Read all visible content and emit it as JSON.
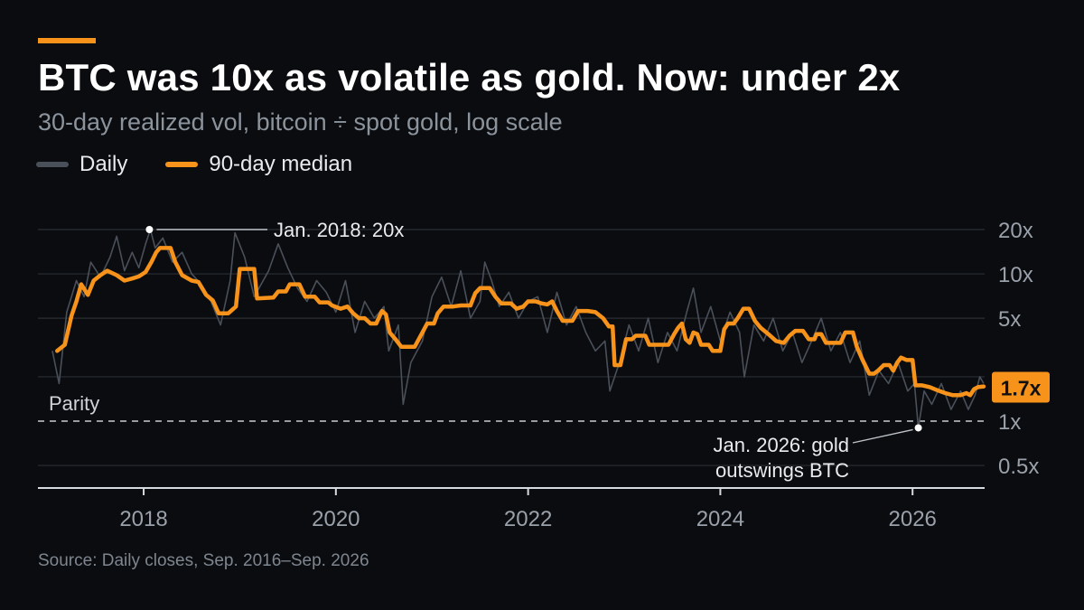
{
  "header": {
    "title": "BTC was 10x as volatile as gold. Now: under 2x",
    "subtitle": "30-day realized vol, bitcoin ÷ spot gold, log scale"
  },
  "legend": {
    "daily_label": "Daily",
    "median_label": "90-day median"
  },
  "footer": {
    "source": "Source: Daily closes, Sep. 2016–Sep. 2026"
  },
  "colors": {
    "background": "#0b0c0f",
    "accent": "#f7931a",
    "median_line": "#f7931a",
    "daily_line": "#4a505a",
    "grid": "#2a2e35",
    "axis_text": "#9aa1aa",
    "parity_line": "#c8ccd2"
  },
  "chart_data": {
    "type": "line",
    "title": "BTC was 10x as volatile as gold. Now: under 2x",
    "subtitle": "30-day realized vol, bitcoin ÷ spot gold, log scale",
    "xlabel": "",
    "ylabel": "",
    "x_range": [
      2016.9,
      2026.75
    ],
    "ylim": [
      0.4,
      22
    ],
    "y_scale": "log",
    "x_ticks": [
      2018,
      2020,
      2022,
      2024,
      2026
    ],
    "x_tick_labels": [
      "2018",
      "2020",
      "2022",
      "2024",
      "2026"
    ],
    "y_ticks": [
      0.5,
      1,
      2,
      5,
      10,
      20
    ],
    "y_tick_labels": [
      "0.5x",
      "1x",
      "",
      "5x",
      "10x",
      "20x"
    ],
    "grid": true,
    "reference_line": {
      "y": 1,
      "label": "Parity",
      "style": "dashed"
    },
    "series": [
      {
        "name": "Daily",
        "values": [
          [
            2017.05,
            3.0
          ],
          [
            2017.12,
            1.8
          ],
          [
            2017.2,
            5.5
          ],
          [
            2017.3,
            9.0
          ],
          [
            2017.38,
            7.0
          ],
          [
            2017.45,
            12.0
          ],
          [
            2017.55,
            9.5
          ],
          [
            2017.65,
            13.0
          ],
          [
            2017.72,
            18.0
          ],
          [
            2017.8,
            10.5
          ],
          [
            2017.88,
            14.0
          ],
          [
            2017.95,
            11.0
          ],
          [
            2018.02,
            16.0
          ],
          [
            2018.07,
            20.0
          ],
          [
            2018.12,
            15.0
          ],
          [
            2018.2,
            17.5
          ],
          [
            2018.3,
            12.0
          ],
          [
            2018.4,
            14.0
          ],
          [
            2018.5,
            10.0
          ],
          [
            2018.6,
            8.5
          ],
          [
            2018.7,
            6.5
          ],
          [
            2018.8,
            4.5
          ],
          [
            2018.9,
            9.0
          ],
          [
            2018.95,
            19.0
          ],
          [
            2019.05,
            13.0
          ],
          [
            2019.15,
            7.0
          ],
          [
            2019.3,
            10.5
          ],
          [
            2019.4,
            16.0
          ],
          [
            2019.5,
            11.0
          ],
          [
            2019.6,
            8.0
          ],
          [
            2019.7,
            6.5
          ],
          [
            2019.8,
            9.0
          ],
          [
            2019.9,
            7.5
          ],
          [
            2020.0,
            5.5
          ],
          [
            2020.1,
            9.0
          ],
          [
            2020.2,
            4.0
          ],
          [
            2020.3,
            6.5
          ],
          [
            2020.4,
            5.0
          ],
          [
            2020.5,
            6.0
          ],
          [
            2020.55,
            3.0
          ],
          [
            2020.65,
            4.5
          ],
          [
            2020.7,
            1.3
          ],
          [
            2020.78,
            2.5
          ],
          [
            2020.9,
            3.5
          ],
          [
            2021.0,
            7.0
          ],
          [
            2021.1,
            9.5
          ],
          [
            2021.2,
            6.0
          ],
          [
            2021.3,
            10.5
          ],
          [
            2021.4,
            5.0
          ],
          [
            2021.5,
            6.5
          ],
          [
            2021.55,
            12.0
          ],
          [
            2021.62,
            9.0
          ],
          [
            2021.7,
            6.0
          ],
          [
            2021.8,
            7.5
          ],
          [
            2021.9,
            5.0
          ],
          [
            2022.0,
            6.5
          ],
          [
            2022.1,
            7.0
          ],
          [
            2022.2,
            4.0
          ],
          [
            2022.3,
            7.5
          ],
          [
            2022.4,
            4.5
          ],
          [
            2022.5,
            6.0
          ],
          [
            2022.6,
            4.0
          ],
          [
            2022.7,
            3.0
          ],
          [
            2022.8,
            3.5
          ],
          [
            2022.85,
            1.6
          ],
          [
            2022.95,
            2.5
          ],
          [
            2023.05,
            4.5
          ],
          [
            2023.15,
            3.0
          ],
          [
            2023.25,
            5.0
          ],
          [
            2023.35,
            2.5
          ],
          [
            2023.45,
            4.0
          ],
          [
            2023.55,
            3.0
          ],
          [
            2023.65,
            5.5
          ],
          [
            2023.72,
            8.0
          ],
          [
            2023.8,
            4.0
          ],
          [
            2023.9,
            6.0
          ],
          [
            2024.0,
            3.5
          ],
          [
            2024.1,
            5.5
          ],
          [
            2024.2,
            4.0
          ],
          [
            2024.25,
            2.0
          ],
          [
            2024.35,
            4.5
          ],
          [
            2024.45,
            3.5
          ],
          [
            2024.55,
            5.0
          ],
          [
            2024.65,
            3.0
          ],
          [
            2024.75,
            4.0
          ],
          [
            2024.85,
            2.5
          ],
          [
            2024.95,
            3.5
          ],
          [
            2025.05,
            5.0
          ],
          [
            2025.15,
            3.0
          ],
          [
            2025.25,
            4.0
          ],
          [
            2025.35,
            2.5
          ],
          [
            2025.45,
            3.5
          ],
          [
            2025.55,
            1.5
          ],
          [
            2025.65,
            2.2
          ],
          [
            2025.75,
            1.8
          ],
          [
            2025.85,
            2.5
          ],
          [
            2025.95,
            1.6
          ],
          [
            2026.02,
            1.8
          ],
          [
            2026.06,
            0.9
          ],
          [
            2026.12,
            1.6
          ],
          [
            2026.2,
            1.3
          ],
          [
            2026.3,
            1.8
          ],
          [
            2026.4,
            1.2
          ],
          [
            2026.5,
            1.6
          ],
          [
            2026.58,
            1.2
          ],
          [
            2026.65,
            1.5
          ],
          [
            2026.7,
            2.0
          ],
          [
            2026.74,
            1.8
          ]
        ]
      },
      {
        "name": "90-day median",
        "values": [
          [
            2017.1,
            3.0
          ],
          [
            2017.18,
            3.3
          ],
          [
            2017.25,
            5.2
          ],
          [
            2017.3,
            6.5
          ],
          [
            2017.35,
            8.5
          ],
          [
            2017.42,
            7.2
          ],
          [
            2017.48,
            9.0
          ],
          [
            2017.55,
            9.8
          ],
          [
            2017.62,
            10.5
          ],
          [
            2017.72,
            9.8
          ],
          [
            2017.8,
            9.0
          ],
          [
            2017.88,
            9.3
          ],
          [
            2017.95,
            9.6
          ],
          [
            2018.02,
            10.3
          ],
          [
            2018.08,
            12.0
          ],
          [
            2018.13,
            14.0
          ],
          [
            2018.17,
            15.0
          ],
          [
            2018.28,
            15.0
          ],
          [
            2018.33,
            12.0
          ],
          [
            2018.4,
            9.8
          ],
          [
            2018.5,
            9.0
          ],
          [
            2018.57,
            8.8
          ],
          [
            2018.65,
            7.2
          ],
          [
            2018.72,
            6.6
          ],
          [
            2018.78,
            5.4
          ],
          [
            2018.88,
            5.4
          ],
          [
            2018.96,
            6.0
          ],
          [
            2019.0,
            10.8
          ],
          [
            2019.15,
            10.8
          ],
          [
            2019.18,
            6.8
          ],
          [
            2019.35,
            6.9
          ],
          [
            2019.4,
            7.6
          ],
          [
            2019.48,
            7.6
          ],
          [
            2019.52,
            8.5
          ],
          [
            2019.62,
            8.5
          ],
          [
            2019.68,
            7.0
          ],
          [
            2019.78,
            7.0
          ],
          [
            2019.83,
            6.4
          ],
          [
            2019.92,
            6.4
          ],
          [
            2019.96,
            6.1
          ],
          [
            2020.05,
            5.8
          ],
          [
            2020.12,
            6.0
          ],
          [
            2020.18,
            5.4
          ],
          [
            2020.24,
            5.0
          ],
          [
            2020.3,
            5.0
          ],
          [
            2020.36,
            4.6
          ],
          [
            2020.42,
            4.6
          ],
          [
            2020.48,
            5.6
          ],
          [
            2020.52,
            5.3
          ],
          [
            2020.56,
            4.0
          ],
          [
            2020.62,
            3.6
          ],
          [
            2020.68,
            3.2
          ],
          [
            2020.82,
            3.2
          ],
          [
            2020.9,
            4.0
          ],
          [
            2020.95,
            4.6
          ],
          [
            2021.02,
            4.6
          ],
          [
            2021.06,
            5.4
          ],
          [
            2021.12,
            6.0
          ],
          [
            2021.22,
            6.0
          ],
          [
            2021.3,
            6.1
          ],
          [
            2021.4,
            6.1
          ],
          [
            2021.45,
            7.4
          ],
          [
            2021.5,
            8.0
          ],
          [
            2021.6,
            8.0
          ],
          [
            2021.66,
            7.0
          ],
          [
            2021.72,
            6.3
          ],
          [
            2021.82,
            6.3
          ],
          [
            2021.88,
            5.8
          ],
          [
            2021.95,
            6.0
          ],
          [
            2022.0,
            6.5
          ],
          [
            2022.08,
            6.5
          ],
          [
            2022.14,
            6.3
          ],
          [
            2022.2,
            6.2
          ],
          [
            2022.25,
            6.5
          ],
          [
            2022.3,
            5.6
          ],
          [
            2022.36,
            4.8
          ],
          [
            2022.46,
            4.8
          ],
          [
            2022.52,
            5.6
          ],
          [
            2022.62,
            5.6
          ],
          [
            2022.7,
            5.5
          ],
          [
            2022.78,
            5.0
          ],
          [
            2022.84,
            4.4
          ],
          [
            2022.88,
            4.4
          ],
          [
            2022.9,
            2.4
          ],
          [
            2022.96,
            2.4
          ],
          [
            2023.02,
            3.6
          ],
          [
            2023.08,
            3.6
          ],
          [
            2023.12,
            3.8
          ],
          [
            2023.22,
            3.8
          ],
          [
            2023.26,
            3.3
          ],
          [
            2023.46,
            3.3
          ],
          [
            2023.52,
            3.9
          ],
          [
            2023.56,
            4.3
          ],
          [
            2023.6,
            4.6
          ],
          [
            2023.64,
            3.6
          ],
          [
            2023.68,
            3.4
          ],
          [
            2023.72,
            4.0
          ],
          [
            2023.76,
            3.9
          ],
          [
            2023.8,
            3.3
          ],
          [
            2023.88,
            3.3
          ],
          [
            2023.92,
            3.0
          ],
          [
            2024.0,
            3.0
          ],
          [
            2024.04,
            4.2
          ],
          [
            2024.08,
            4.6
          ],
          [
            2024.14,
            4.6
          ],
          [
            2024.18,
            5.0
          ],
          [
            2024.24,
            5.8
          ],
          [
            2024.3,
            5.8
          ],
          [
            2024.36,
            4.8
          ],
          [
            2024.42,
            4.3
          ],
          [
            2024.5,
            3.9
          ],
          [
            2024.58,
            3.5
          ],
          [
            2024.66,
            3.4
          ],
          [
            2024.72,
            3.8
          ],
          [
            2024.78,
            4.1
          ],
          [
            2024.86,
            4.1
          ],
          [
            2024.92,
            3.6
          ],
          [
            2024.98,
            3.6
          ],
          [
            2025.0,
            3.9
          ],
          [
            2025.05,
            3.9
          ],
          [
            2025.1,
            3.4
          ],
          [
            2025.25,
            3.4
          ],
          [
            2025.3,
            4.0
          ],
          [
            2025.38,
            4.0
          ],
          [
            2025.42,
            3.2
          ],
          [
            2025.48,
            2.6
          ],
          [
            2025.55,
            2.1
          ],
          [
            2025.6,
            2.1
          ],
          [
            2025.64,
            2.2
          ],
          [
            2025.7,
            2.4
          ],
          [
            2025.76,
            2.4
          ],
          [
            2025.8,
            2.2
          ],
          [
            2025.84,
            2.5
          ],
          [
            2025.88,
            2.7
          ],
          [
            2025.94,
            2.6
          ],
          [
            2026.0,
            2.6
          ],
          [
            2026.03,
            1.75
          ],
          [
            2026.1,
            1.75
          ],
          [
            2026.18,
            1.7
          ],
          [
            2026.26,
            1.62
          ],
          [
            2026.34,
            1.55
          ],
          [
            2026.42,
            1.5
          ],
          [
            2026.5,
            1.5
          ],
          [
            2026.56,
            1.55
          ],
          [
            2026.6,
            1.5
          ],
          [
            2026.64,
            1.65
          ],
          [
            2026.68,
            1.7
          ],
          [
            2026.74,
            1.72
          ]
        ]
      }
    ],
    "annotations": [
      {
        "label": "Jan. 2018: 20x",
        "x": 2018.06,
        "y": 20
      },
      {
        "label": "Jan. 2026: gold outswings BTC",
        "x": 2026.06,
        "y": 0.9
      }
    ],
    "end_value_label": "1.7x",
    "end_value_y": 1.7
  }
}
